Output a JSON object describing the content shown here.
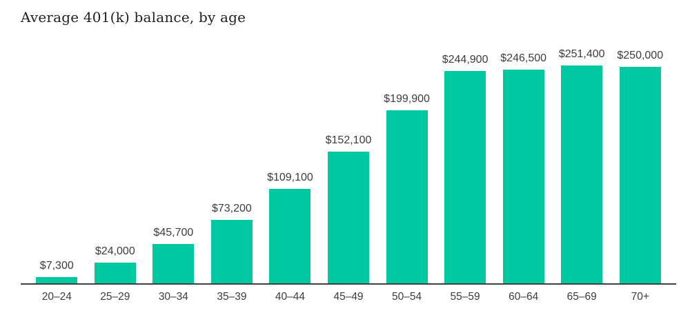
{
  "chart": {
    "title": "Average 401(k) balance, by age",
    "colors": {
      "bar": "#00c9a2",
      "axis": "#3f3f3f",
      "title_text": "#1f1f1f",
      "label_text": "#3c3c3c"
    }
  },
  "chart_data": {
    "type": "bar",
    "title": "Average 401(k) balance, by age",
    "categories": [
      "20–24",
      "25–29",
      "30–34",
      "35–39",
      "40–44",
      "45–49",
      "50–54",
      "55–59",
      "60–64",
      "65–69",
      "70+"
    ],
    "values": [
      7300,
      24000,
      45700,
      73200,
      109100,
      152100,
      199900,
      244900,
      246500,
      251400,
      250000
    ],
    "value_labels": [
      "$7,300",
      "$24,000",
      "$45,700",
      "$73,200",
      "$109,100",
      "$152,100",
      "$199,900",
      "$244,900",
      "$246,500",
      "$251,400",
      "$250,000"
    ],
    "xlabel": "",
    "ylabel": "",
    "ylim": [
      0,
      260000
    ],
    "grid": false,
    "legend": "none",
    "data_labels": "above-bars",
    "baseline_axis": "x-only"
  }
}
